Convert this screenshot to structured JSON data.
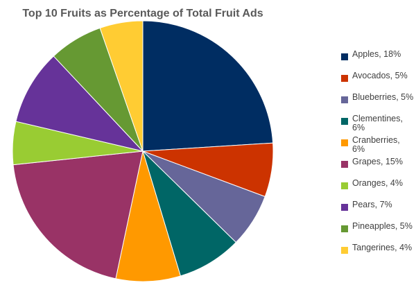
{
  "chart_data": {
    "type": "pie",
    "title": "Top 10 Fruits as Percentage of Total Fruit Ads",
    "legend_position": "right",
    "slices": [
      {
        "label": "Apples, 18%",
        "value": 18,
        "color": "#002D62"
      },
      {
        "label": "Avocados, 5%",
        "value": 5,
        "color": "#CC3300"
      },
      {
        "label": "Blueberries, 5%",
        "value": 5,
        "color": "#666699"
      },
      {
        "label": "Clementines, 6%",
        "value": 6,
        "color": "#006666"
      },
      {
        "label": "Cranberries, 6%",
        "value": 6,
        "color": "#FF9900"
      },
      {
        "label": "Grapes, 15%",
        "value": 15,
        "color": "#993366"
      },
      {
        "label": "Oranges, 4%",
        "value": 4,
        "color": "#99CC33"
      },
      {
        "label": "Pears, 7%",
        "value": 7,
        "color": "#663399"
      },
      {
        "label": "Pineapples, 5%",
        "value": 5,
        "color": "#669933"
      },
      {
        "label": "Tangerines, 4%",
        "value": 4,
        "color": "#FFCC33"
      }
    ]
  }
}
